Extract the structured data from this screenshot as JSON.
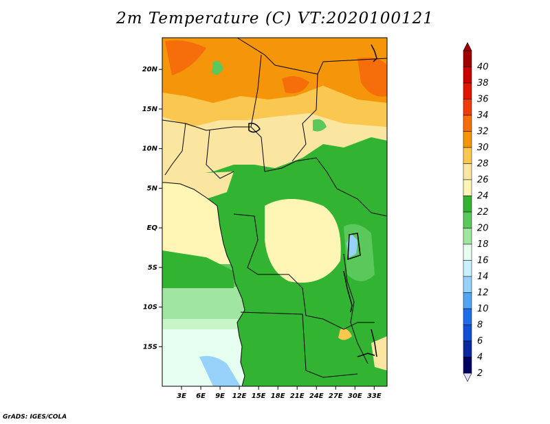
{
  "title": "2m Temperature (C) VT:2020100121",
  "credit": "GrADS: IGES/COLA",
  "map": {
    "lon_range": [
      0,
      35
    ],
    "lat_range": [
      -20,
      24
    ],
    "lon_ticks": [
      "3E",
      "6E",
      "9E",
      "12E",
      "15E",
      "18E",
      "21E",
      "24E",
      "27E",
      "30E",
      "33E"
    ],
    "lon_tick_values": [
      3,
      6,
      9,
      12,
      15,
      18,
      21,
      24,
      27,
      30,
      33
    ],
    "lat_ticks": [
      "20N",
      "15N",
      "10N",
      "5N",
      "EQ",
      "5S",
      "10S",
      "15S"
    ],
    "lat_tick_values": [
      20,
      15,
      10,
      5,
      0,
      -5,
      -10,
      -15
    ]
  },
  "colorbar": {
    "labels": [
      "40",
      "38",
      "36",
      "34",
      "32",
      "30",
      "28",
      "26",
      "24",
      "22",
      "20",
      "18",
      "16",
      "14",
      "12",
      "10",
      "8",
      "6",
      "4",
      "2"
    ],
    "colors": [
      "#a00000",
      "#c80000",
      "#e11400",
      "#f03c0a",
      "#f56e0a",
      "#f5960a",
      "#fac850",
      "#fae6a0",
      "#fff5b4",
      "#32b432",
      "#5ac85a",
      "#a0e6a0",
      "#e6fff0",
      "#c8f0ff",
      "#96d2fa",
      "#50a5f5",
      "#1e6eeb",
      "#1450d2",
      "#0a28a0",
      "#000064"
    ],
    "under_color": "#e1e1f5",
    "over_color": "#a00000"
  }
}
